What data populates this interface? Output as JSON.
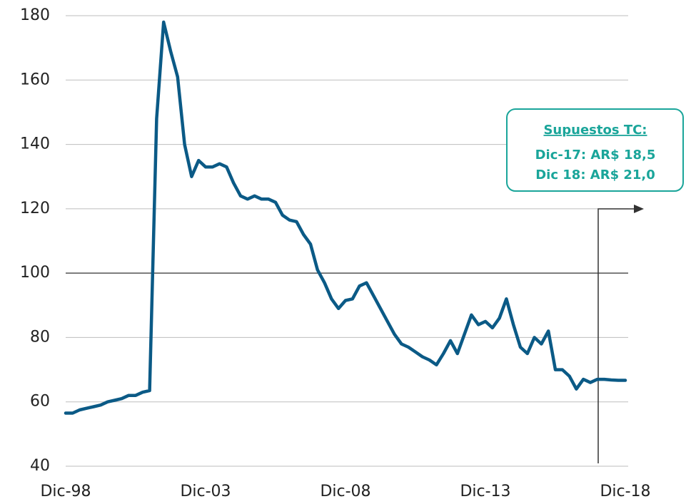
{
  "chart_data": {
    "type": "line",
    "categories": [
      "Dic-98",
      null,
      null,
      null,
      null,
      null,
      null,
      null,
      null,
      null,
      null,
      null,
      null,
      null,
      null,
      null,
      null,
      null,
      null,
      null,
      "Dic-03",
      null,
      null,
      null,
      null,
      null,
      null,
      null,
      null,
      null,
      null,
      null,
      null,
      null,
      null,
      null,
      null,
      null,
      null,
      null,
      "Dic-08",
      null,
      null,
      null,
      null,
      null,
      null,
      null,
      null,
      null,
      null,
      null,
      null,
      null,
      null,
      null,
      null,
      null,
      null,
      null,
      "Dic-13",
      null,
      null,
      null,
      null,
      null,
      null,
      null,
      null,
      null,
      null,
      null,
      null,
      null,
      null,
      null,
      null,
      null,
      null,
      null,
      "Dic-18"
    ],
    "series": [
      {
        "color": "#0b5a86",
        "values": [
          56.5,
          56.5,
          57.5,
          58,
          58.5,
          59,
          60,
          60.5,
          61,
          62,
          62,
          63,
          63.5,
          148,
          178,
          169,
          161,
          140,
          130,
          135,
          133,
          133,
          134,
          133,
          128,
          124,
          123,
          124,
          123,
          123,
          122,
          118,
          116.5,
          116,
          112,
          109,
          101,
          97,
          92,
          89,
          91.5,
          92,
          96,
          97,
          93,
          89,
          85,
          81,
          78,
          77,
          75.5,
          74,
          73,
          71.5,
          75,
          79,
          75,
          81,
          87,
          84,
          85,
          83,
          86,
          92,
          84,
          77,
          75,
          80,
          78,
          82,
          70,
          70,
          68,
          64,
          67,
          66,
          67,
          67,
          66.8,
          66.7,
          66.7
        ]
      }
    ],
    "ylim": [
      40,
      180
    ],
    "yticks": [
      40,
      60,
      80,
      100,
      120,
      140,
      160,
      180
    ],
    "grid": true,
    "reference_line": 100,
    "annotation": {
      "title": "Supuestos TC:",
      "lines": [
        "Dic-17: AR$ 18,5",
        "Dic 18: AR$ 21,0"
      ]
    }
  }
}
